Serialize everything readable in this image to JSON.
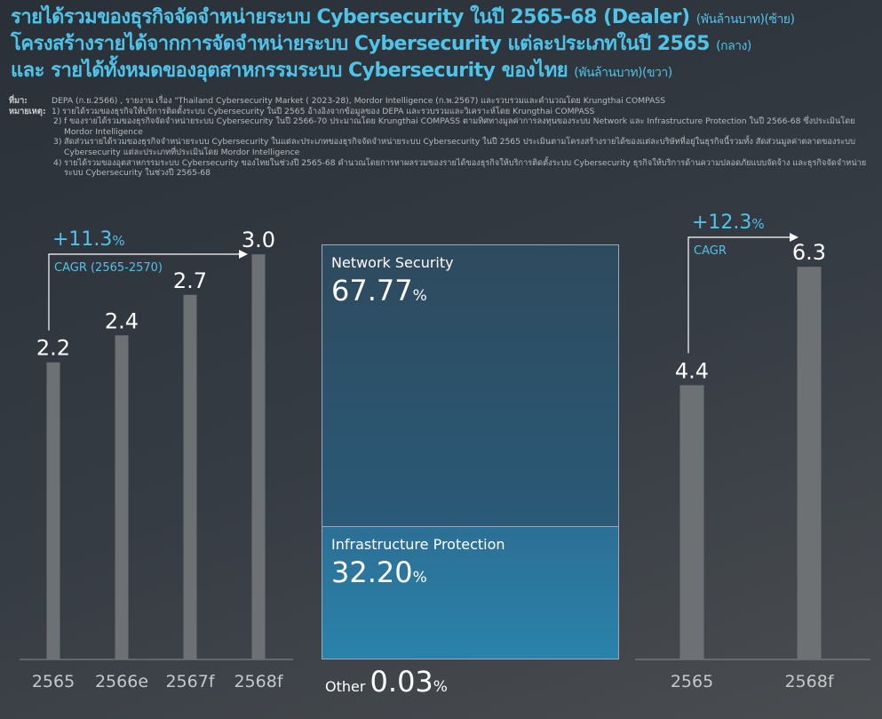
{
  "title": {
    "line1_main": "รายได้รวมของธุรกิจจัดจำหน่ายระบบ Cybersecurity ในปี 2565-68 (Dealer)",
    "line1_sub": "(พันล้านบาท)(ซ้าย)",
    "line2_main": "โครงสร้างรายได้จากการจัดจำหน่ายระบบ Cybersecurity แต่ละประเภทในปี 2565",
    "line2_sub": "(กลาง)",
    "line3_main": "และ รายได้ทั้งหมดของอุตสาหกรรมระบบ Cybersecurity ของไทย",
    "line3_sub": "(พันล้านบาท)(ขวา)"
  },
  "notes": {
    "source_label": "ที่มา:",
    "source_text": "DEPA (ก.ย.2566) , รายงาน เรื่อง \"Thailand Cybersecurity Market ( 2023-28), Mordor Intelligence (ก.พ.2567) และรวบรวมและคำนวณโดย Krungthai COMPASS",
    "remark_label": "หมายเหตุ:",
    "items": [
      {
        "num": "1)",
        "text": "รายได้รวมของธุรกิจให้บริการติดตั้งระบบ Cybersecurity ในปี 2565 อ้างอิงจากข้อมูลของ DEPA และรวบรวมและวิเคราะห์โดย Krungthai COMPASS"
      },
      {
        "num": "2)",
        "text": "f ของรายได้รวมของธุรกิจจัดจำหน่ายระบบ Cybersecurity ในปี 2566-70 ประมาณโดย Krungthai COMPASS ตามทิศทางมูลค่าการลงทุนของระบบ Network และ Infrastructure Protection ในปี 2566-68 ซึ่งประเมินโดย Mordor Intelligence"
      },
      {
        "num": "3)",
        "text": "สัดส่วนรายได้รวมของธุรกิจจำหน่ายระบบ Cybersecurity ในแต่ละประเภทของธุรกิจจัดจำหน่ายระบบ Cybersecurity ในปี 2565 ประเมินตามโครงสร้างรายได้ของแต่ละบริษัทที่อยู่ในธุรกิจนี้รวมทั้ง สัดส่วนมูลค่าตลาดของระบบ Cybersecurity แต่ละประเภทที่ประเมินโดย Mordor Intelligence"
      },
      {
        "num": "4)",
        "text": "รายได้รวมของอุตสาหกรรมระบบ Cybersecurity ของไทยในช่วงปี 2565-68 คำนวณโดยการหาผลรวมของรายได้ของธุรกิจให้บริการติดตั้งระบบ Cybersecurity ธุรกิจให้บริการด้านความปลอดภัยแบบจัดจ้าง และธุรกิจจัดจำหน่ายระบบ Cybersecurity ในช่วงปี 2565-68"
      }
    ]
  },
  "colors": {
    "bar": "#6e7174",
    "accent": "#4fc3e8",
    "network": "#2e4f66",
    "infra": "#2a7ea6"
  },
  "chart_data": [
    {
      "type": "bar",
      "categories": [
        "2565",
        "2566e",
        "2567f",
        "2568f"
      ],
      "values": [
        2.2,
        2.4,
        2.7,
        3.0
      ],
      "value_labels": [
        "2.2",
        "2.4",
        "2.7",
        "3.0"
      ],
      "ylim": [
        0,
        3.6
      ],
      "cagr_value": "+11.3",
      "cagr_pct": "%",
      "cagr_label": "CAGR (2565-2570)"
    },
    {
      "type": "bar",
      "stacked": true,
      "categories": [
        "2565"
      ],
      "series": [
        {
          "name": "Network Security",
          "value": 67.77,
          "label": "67.77",
          "pct": "%"
        },
        {
          "name": "Infrastructure Protection",
          "value": 32.2,
          "label": "32.20",
          "pct": "%"
        },
        {
          "name": "Other",
          "value": 0.03,
          "label": "0.03",
          "pct": "%"
        }
      ]
    },
    {
      "type": "bar",
      "categories": [
        "2565",
        "2568f"
      ],
      "values": [
        4.4,
        6.3
      ],
      "value_labels": [
        "4.4",
        "6.3"
      ],
      "ylim": [
        0,
        7.8
      ],
      "cagr_value": "+12.3",
      "cagr_pct": "%",
      "cagr_label": "CAGR"
    }
  ]
}
